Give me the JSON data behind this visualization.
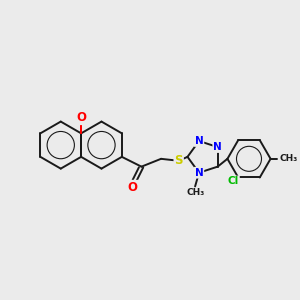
{
  "bg_color": "#ebebeb",
  "bond_color": "#1a1a1a",
  "atom_colors": {
    "O": "#ff0000",
    "S": "#cccc00",
    "N": "#0000ff",
    "Cl": "#00bb00",
    "C": "#1a1a1a"
  },
  "figsize": [
    3.0,
    3.0
  ],
  "dpi": 100,
  "lw": 1.4
}
